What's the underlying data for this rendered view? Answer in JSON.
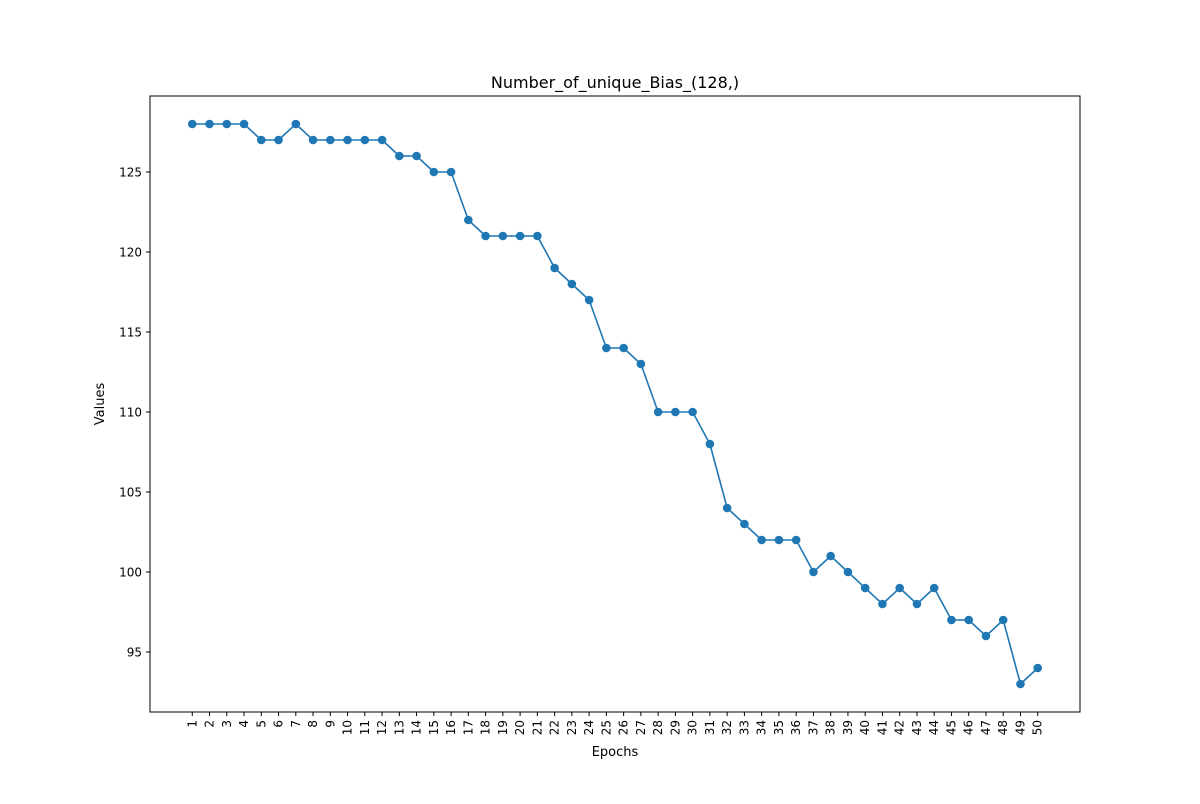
{
  "chart_data": {
    "type": "line",
    "title": "Number_of_unique_Bias_(128,)",
    "xlabel": "Epochs",
    "ylabel": "Values",
    "x": [
      1,
      2,
      3,
      4,
      5,
      6,
      7,
      8,
      9,
      10,
      11,
      12,
      13,
      14,
      15,
      16,
      17,
      18,
      19,
      20,
      21,
      22,
      23,
      24,
      25,
      26,
      27,
      28,
      29,
      30,
      31,
      32,
      33,
      34,
      35,
      36,
      37,
      38,
      39,
      40,
      41,
      42,
      43,
      44,
      45,
      46,
      47,
      48,
      49,
      50
    ],
    "xtick_labels": [
      "1",
      "2",
      "3",
      "4",
      "5",
      "6",
      "7",
      "8",
      "9",
      "10",
      "11",
      "12",
      "13",
      "14",
      "15",
      "16",
      "17",
      "18",
      "19",
      "20",
      "21",
      "22",
      "23",
      "24",
      "25",
      "26",
      "27",
      "28",
      "29",
      "30",
      "31",
      "32",
      "33",
      "34",
      "35",
      "36",
      "37",
      "38",
      "39",
      "40",
      "41",
      "42",
      "43",
      "44",
      "45",
      "46",
      "47",
      "48",
      "49",
      "50"
    ],
    "series": [
      {
        "values": [
          128,
          128,
          128,
          128,
          127,
          127,
          128,
          127,
          127,
          127,
          127,
          127,
          126,
          126,
          125,
          125,
          122,
          121,
          121,
          121,
          121,
          119,
          118,
          117,
          114,
          114,
          113,
          110,
          110,
          110,
          108,
          104,
          103,
          102,
          102,
          102,
          100,
          101,
          100,
          99,
          98,
          99,
          98,
          99,
          97,
          97,
          96,
          97,
          93,
          94
        ],
        "color": "#1f77b4",
        "marker": "circle"
      }
    ],
    "yticks": [
      95,
      100,
      105,
      110,
      115,
      120,
      125
    ],
    "ytick_labels": [
      "95",
      "100",
      "105",
      "110",
      "115",
      "120",
      "125"
    ],
    "ylim": [
      91.25,
      129.75
    ],
    "xlim": [
      -1.45,
      52.45
    ],
    "grid": false,
    "legend": "none"
  }
}
